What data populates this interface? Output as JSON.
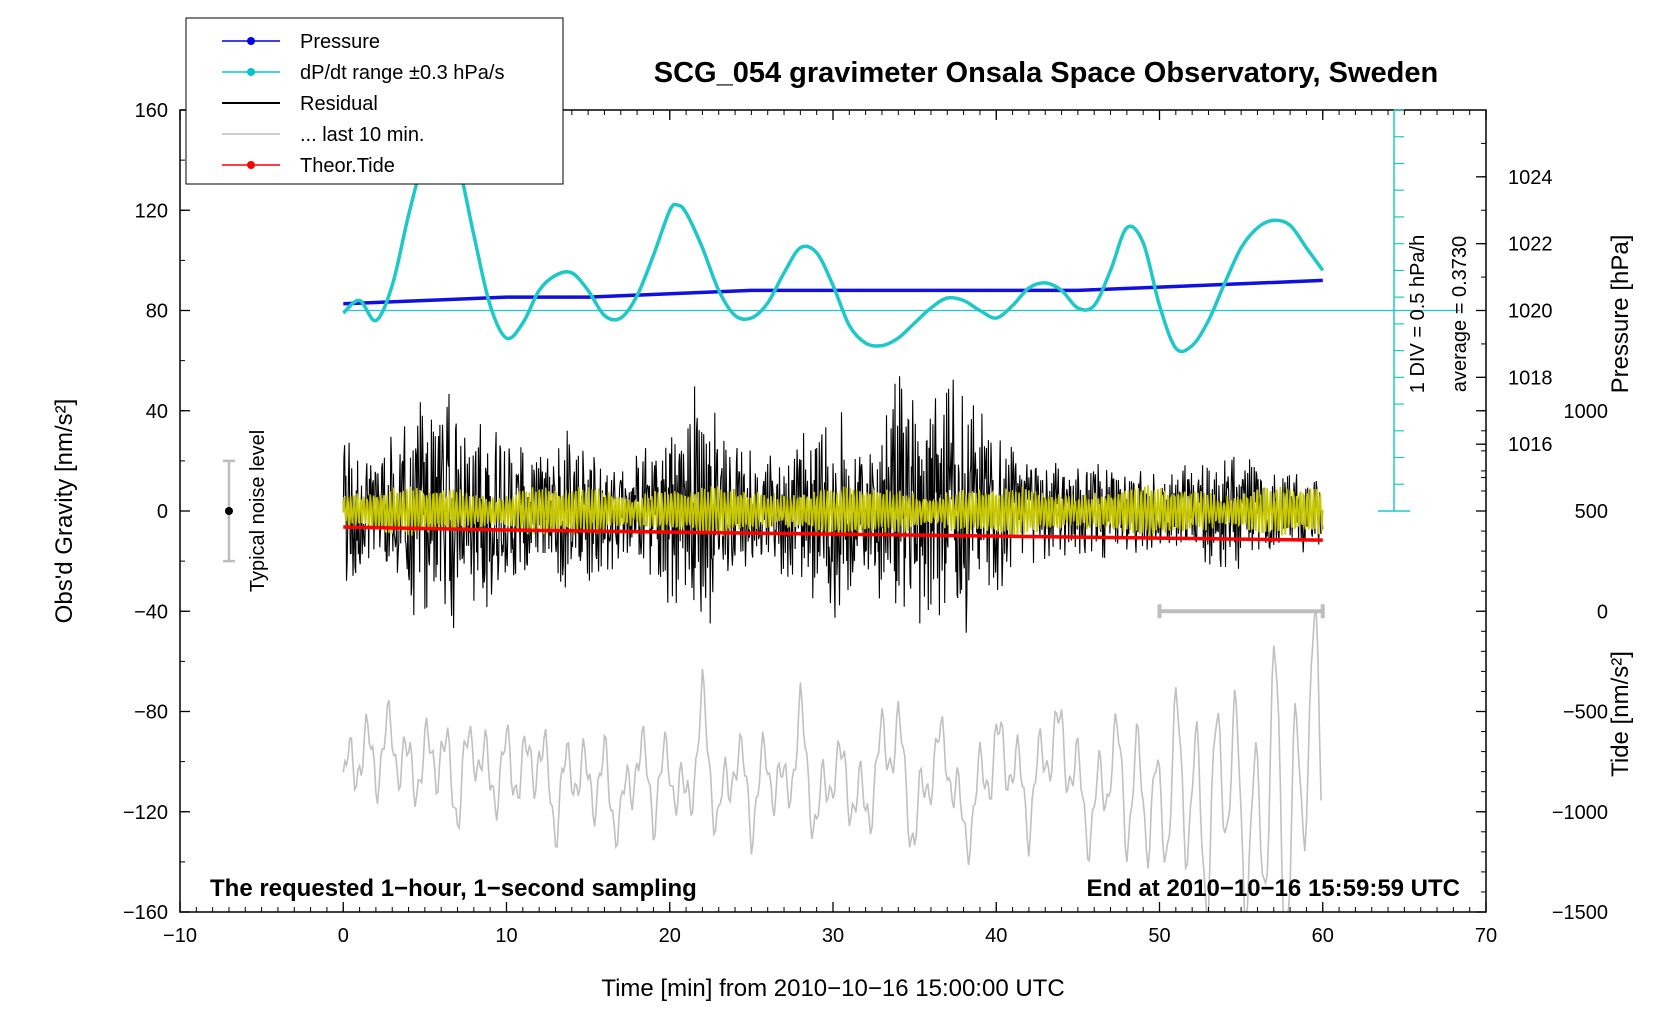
{
  "chart_data": {
    "type": "line",
    "title": "SCG_054 gravimeter Onsala Space Observatory, Sweden",
    "xlabel": "Time [min] from 2010−10−16 15:00:00 UTC",
    "ylabel_left": "Obs'd Gravity [nm/s²]",
    "ylabel_right_top": "Pressure [hPa]",
    "ylabel_right_bottom": "Tide [nm/s²]",
    "xlim": [
      -10,
      70
    ],
    "ylim": [
      -160,
      160
    ],
    "x_ticks": [
      -10,
      0,
      10,
      20,
      30,
      40,
      50,
      60,
      70
    ],
    "x_tick_labels": [
      "−10",
      "0",
      "10",
      "20",
      "30",
      "40",
      "50",
      "60",
      "70"
    ],
    "y_ticks": [
      -160,
      -120,
      -80,
      -40,
      0,
      40,
      80,
      120,
      160
    ],
    "y_tick_labels": [
      "−160",
      "−120",
      "−80",
      "−40",
      "0",
      "40",
      "80",
      "120",
      "160"
    ],
    "pressure_axis": {
      "range": [
        1014,
        1026
      ],
      "ticks": [
        1016,
        1018,
        1020,
        1022,
        1024
      ],
      "tick_labels": [
        "1016",
        "1018",
        "1020",
        "1022",
        "1024"
      ]
    },
    "tide_axis": {
      "range": [
        -1500,
        1000
      ],
      "ticks": [
        -1500,
        -1000,
        -500,
        0,
        500,
        1000
      ],
      "tick_labels": [
        "−1500",
        "−1000",
        "−500",
        "0",
        "500",
        "1000"
      ]
    },
    "dpdt_scale_text": "1 DIV = 0.5 hPa/h",
    "dpdt_average_text": "average = 0.3730",
    "noise_level_label": "Typical noise level",
    "noise_bar": {
      "x": -7,
      "center": 0,
      "half_range": 20
    },
    "last10_bar": {
      "x_start": 50,
      "x_end": 60,
      "y": -40
    },
    "footer_left": "The requested 1−hour, 1−second sampling",
    "footer_right": "End at 2010−10−16 15:59:59 UTC",
    "legend": [
      {
        "label": "Pressure",
        "color": "#0000ee",
        "marker": true
      },
      {
        "label": "dP/dt range ±0.3 hPa/s",
        "color": "#00c8c8",
        "marker": true
      },
      {
        "label": "Residual",
        "color": "#000000",
        "marker": false
      },
      {
        "label": "... last 10 min.",
        "color": "#bdbdbd",
        "marker": false
      },
      {
        "label": "Theor.Tide",
        "color": "#ff0000",
        "marker": true
      }
    ],
    "colors": {
      "pressure": "#1010e0",
      "dpdt": "#1ec8c8",
      "residual": "#000000",
      "residual_filtered": "#c8c800",
      "tide": "#ff0000",
      "last10": "#c0c0c0",
      "reference": "#1ec8c8"
    },
    "series": [
      {
        "name": "Pressure",
        "unit": "hPa",
        "x": [
          0,
          5,
          10,
          15,
          20,
          25,
          30,
          35,
          40,
          45,
          50,
          55,
          60
        ],
        "values": [
          1020.2,
          1020.3,
          1020.4,
          1020.4,
          1020.5,
          1020.6,
          1020.6,
          1020.6,
          1020.6,
          1020.6,
          1020.7,
          1020.8,
          1020.9
        ]
      },
      {
        "name": "dP/dt range ±0.3 hPa/s",
        "unit": "nm/s² plot scale",
        "x": [
          0,
          1,
          2,
          3,
          4,
          5,
          6,
          7,
          8,
          9,
          10,
          11,
          12,
          13,
          14,
          15,
          16,
          17,
          18,
          19,
          20,
          20.5,
          21,
          22,
          23,
          24,
          25,
          26,
          27,
          28,
          29,
          30,
          31,
          32,
          33,
          34,
          35,
          36,
          37,
          38,
          39,
          40,
          41,
          42,
          43,
          44,
          45,
          46,
          47,
          48,
          49,
          50,
          51,
          52,
          53,
          54,
          55,
          56,
          57,
          58,
          59,
          60
        ],
        "values": [
          79,
          84,
          76,
          90,
          118,
          142,
          155,
          140,
          110,
          82,
          69,
          75,
          88,
          94,
          95,
          88,
          78,
          77,
          86,
          102,
          120,
          122,
          119,
          105,
          88,
          78,
          77,
          83,
          95,
          105,
          103,
          90,
          74,
          67,
          66,
          69,
          75,
          81,
          85,
          84,
          80,
          77,
          82,
          89,
          91,
          88,
          81,
          82,
          96,
          113,
          107,
          82,
          65,
          66,
          76,
          91,
          105,
          113,
          116,
          114,
          105,
          96
        ]
      },
      {
        "name": "Residual",
        "unit": "nm/s²",
        "envelope_x": [
          0,
          2,
          4,
          6,
          8,
          10,
          12,
          14,
          16,
          18,
          20,
          22,
          24,
          26,
          28,
          30,
          32,
          34,
          36,
          38,
          40,
          42,
          44,
          46,
          48,
          50,
          52,
          54,
          56,
          58,
          60
        ],
        "envelope_amplitude": [
          35,
          22,
          45,
          50,
          42,
          38,
          22,
          35,
          28,
          22,
          40,
          55,
          30,
          22,
          30,
          45,
          28,
          55,
          50,
          55,
          35,
          22,
          20,
          20,
          18,
          15,
          20,
          25,
          22,
          18,
          15
        ]
      },
      {
        "name": "... last 10 min.",
        "unit": "nm/s²",
        "x": [
          0,
          1,
          2,
          3,
          4,
          5,
          6,
          7,
          8,
          9,
          10,
          11,
          12,
          13,
          14,
          15,
          16,
          17,
          18,
          19,
          20,
          21,
          22,
          23,
          24,
          25,
          26,
          27,
          28,
          29,
          30,
          31,
          32,
          33,
          34,
          35,
          36,
          37,
          38,
          39,
          40,
          41,
          42,
          43,
          44,
          45,
          46,
          47,
          48,
          49,
          50,
          51,
          52,
          53,
          54,
          55,
          56,
          57,
          58,
          59,
          60
        ],
        "values": [
          -110,
          -95,
          -100,
          -90,
          -105,
          -100,
          -95,
          -115,
          -90,
          -110,
          -100,
          -105,
          -95,
          -120,
          -100,
          -110,
          -105,
          -125,
          -95,
          -115,
          -100,
          -120,
          -80,
          -125,
          -95,
          -120,
          -100,
          -115,
          -85,
          -125,
          -100,
          -110,
          -120,
          -95,
          -90,
          -130,
          -100,
          -95,
          -130,
          -110,
          -95,
          -100,
          -120,
          -95,
          -90,
          -110,
          -125,
          -95,
          -115,
          -110,
          -125,
          -100,
          -115,
          -130,
          -95,
          -120,
          -135,
          -90,
          -145,
          -80,
          -90
        ]
      },
      {
        "name": "Theor.Tide",
        "unit": "nm/s²",
        "x": [
          0,
          10,
          20,
          30,
          40,
          50,
          60
        ],
        "values": [
          420,
          405,
          395,
          385,
          375,
          365,
          355
        ]
      }
    ]
  }
}
